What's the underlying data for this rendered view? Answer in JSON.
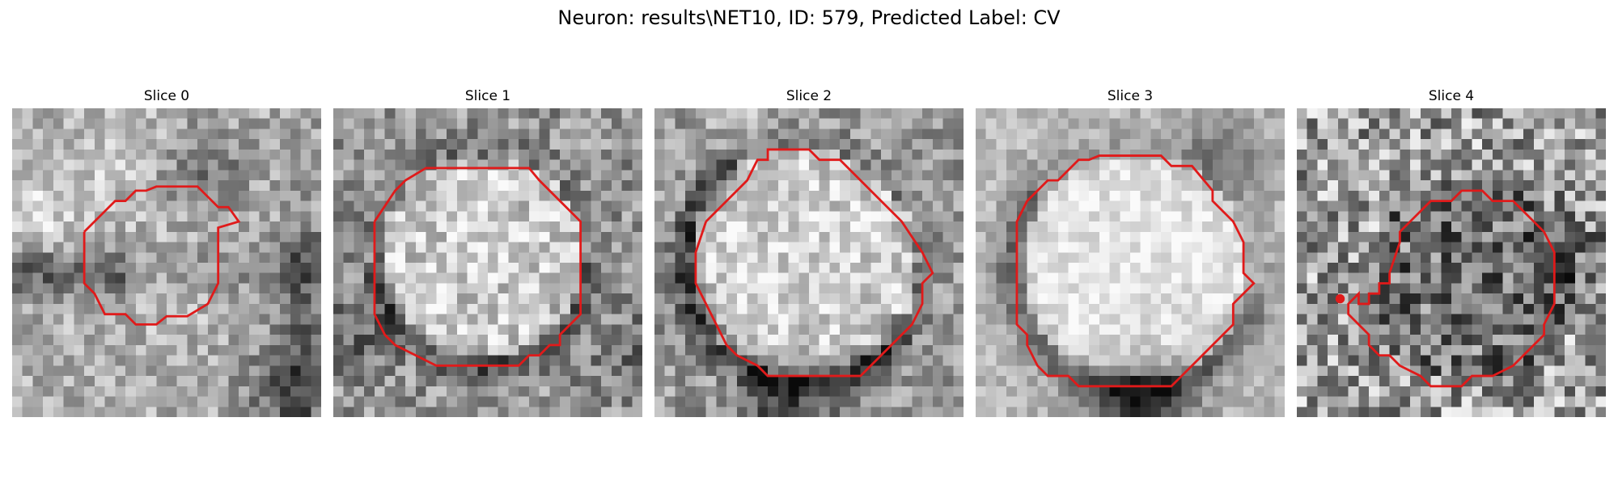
{
  "figure": {
    "title": "Neuron: results\\NET10, ID: 579, Predicted Label: CV"
  },
  "panels": [
    {
      "title": "Slice 0",
      "image": "grayscale microscopy patch",
      "contour_color": "#e01a1a"
    },
    {
      "title": "Slice 1",
      "image": "grayscale microscopy patch",
      "contour_color": "#e01a1a"
    },
    {
      "title": "Slice 2",
      "image": "grayscale microscopy patch",
      "contour_color": "#e01a1a"
    },
    {
      "title": "Slice 3",
      "image": "grayscale microscopy patch",
      "contour_color": "#e01a1a"
    },
    {
      "title": "Slice 4",
      "image": "grayscale microscopy patch",
      "contour_color": "#e01a1a"
    }
  ]
}
